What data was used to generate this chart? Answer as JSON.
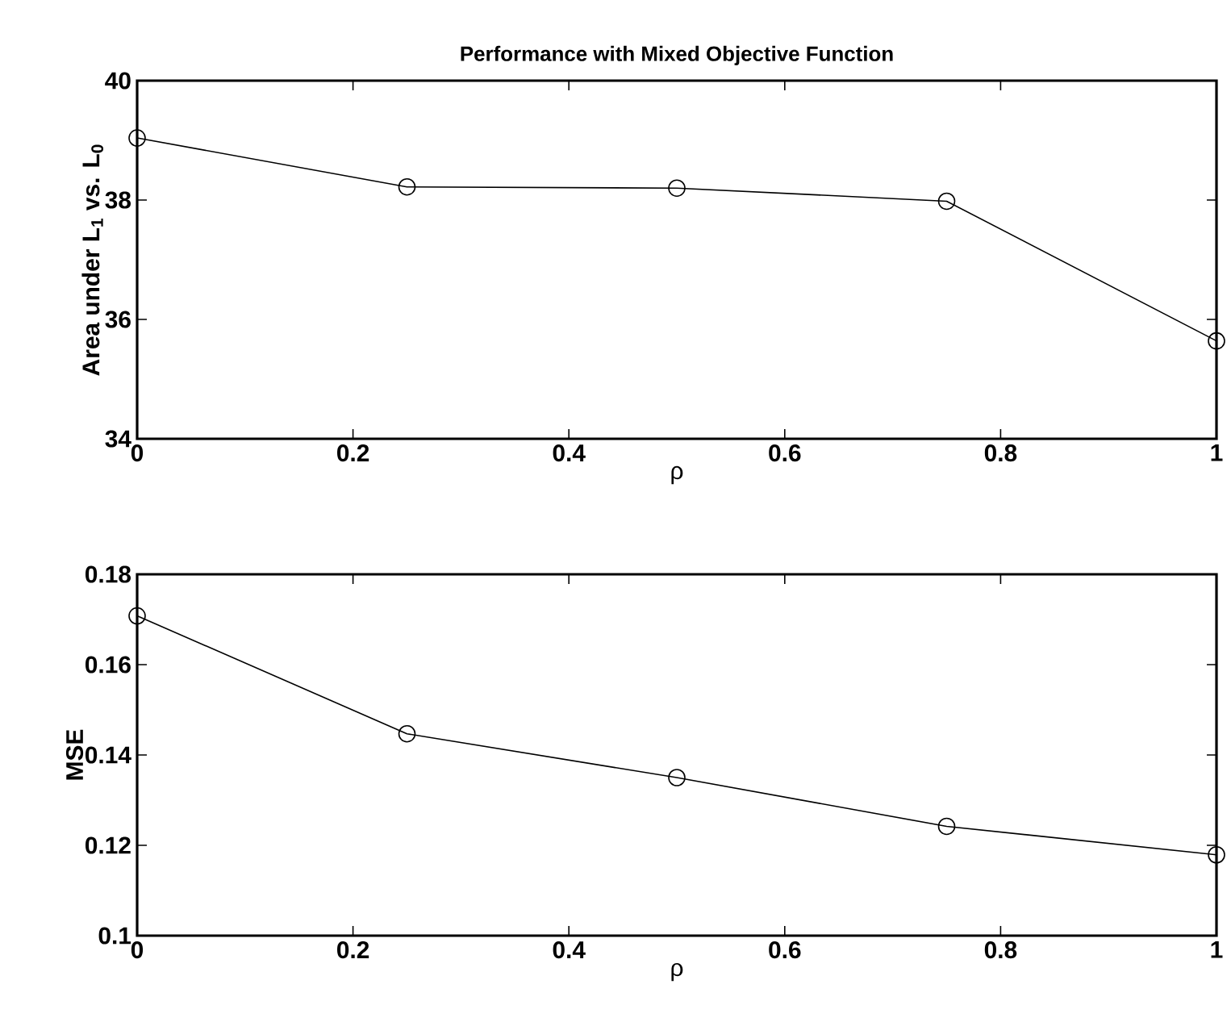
{
  "chart_data": [
    {
      "type": "line",
      "title": "Performance with Mixed Objective Function",
      "xlabel": "ρ",
      "ylabel": "Area under L$_{1}$ vs. L$_{0}$",
      "x": [
        0,
        0.25,
        0.5,
        0.75,
        1
      ],
      "values": [
        39.04,
        38.22,
        38.2,
        37.98,
        35.64
      ],
      "color": "#000000",
      "marker": "circle",
      "line_style": "solid",
      "xlim": [
        0,
        1
      ],
      "ylim": [
        34,
        40
      ],
      "xticks": [
        0,
        0.2,
        0.4,
        0.6,
        0.8,
        1
      ],
      "yticks": [
        34,
        36,
        38,
        40
      ]
    },
    {
      "type": "line",
      "xlabel": "ρ",
      "ylabel": "MSE",
      "x": [
        0,
        0.25,
        0.5,
        0.75,
        1
      ],
      "values": [
        0.1708,
        0.1447,
        0.135,
        0.1242,
        0.1179
      ],
      "color": "#000000",
      "marker": "circle",
      "line_style": "solid",
      "xlim": [
        0,
        1
      ],
      "ylim": [
        0.1,
        0.18
      ],
      "xticks": [
        0,
        0.2,
        0.4,
        0.6,
        0.8,
        1
      ],
      "yticks": [
        0.1,
        0.12,
        0.14,
        0.16,
        0.18
      ]
    }
  ]
}
